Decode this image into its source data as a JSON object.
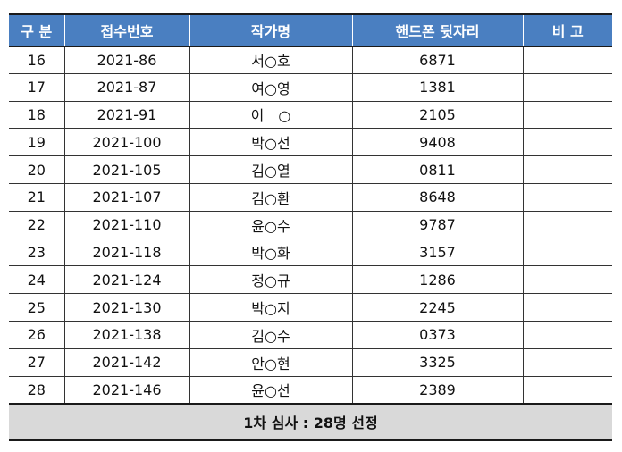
{
  "table": {
    "headers": [
      "구 분",
      "접수번호",
      "작가명",
      "핸드폰 뒷자리",
      "비 고"
    ],
    "rows": [
      [
        "16",
        "2021-86",
        "서○호",
        "6871",
        ""
      ],
      [
        "17",
        "2021-87",
        "여○영",
        "1381",
        ""
      ],
      [
        "18",
        "2021-91",
        "이　○",
        "2105",
        ""
      ],
      [
        "19",
        "2021-100",
        "박○선",
        "9408",
        ""
      ],
      [
        "20",
        "2021-105",
        "김○열",
        "0811",
        ""
      ],
      [
        "21",
        "2021-107",
        "김○환",
        "8648",
        ""
      ],
      [
        "22",
        "2021-110",
        "윤○수",
        "9787",
        ""
      ],
      [
        "23",
        "2021-118",
        "박○화",
        "3157",
        ""
      ],
      [
        "24",
        "2021-124",
        "정○규",
        "1286",
        ""
      ],
      [
        "25",
        "2021-130",
        "박○지",
        "2245",
        ""
      ],
      [
        "26",
        "2021-138",
        "김○수",
        "0373",
        ""
      ],
      [
        "27",
        "2021-142",
        "안○현",
        "3325",
        ""
      ],
      [
        "28",
        "2021-146",
        "윤○선",
        "2389",
        ""
      ]
    ],
    "footer": "1차 심사 : 28명 선정"
  },
  "colors": {
    "header_bg": "#4a7fc1",
    "header_text": "#ffffff",
    "footer_bg": "#d9d9d9"
  }
}
